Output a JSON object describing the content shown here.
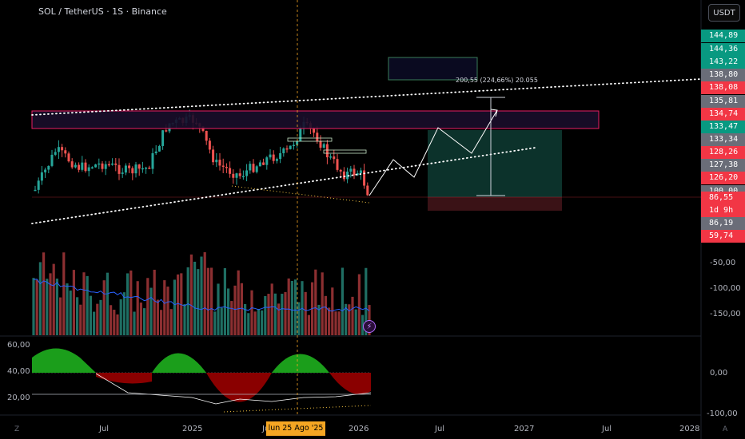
{
  "header": {
    "symbol_title": "SOL / TetherUS · 1S · Binance",
    "currency_button": "USDT"
  },
  "price_badges": [
    {
      "text": "144,89",
      "color": "#089981"
    },
    {
      "text": "144,36",
      "color": "#089981"
    },
    {
      "text": "143,22",
      "color": "#089981"
    },
    {
      "text": "138,80",
      "color": "#6a6d78"
    },
    {
      "text": "138,08",
      "color": "#f23645"
    },
    {
      "text": "135,81",
      "color": "#6a6d78"
    },
    {
      "text": "134,74",
      "color": "#f23645"
    },
    {
      "text": "133,47",
      "color": "#089981"
    },
    {
      "text": "133,34",
      "color": "#6a6d78"
    },
    {
      "text": "128,26",
      "color": "#f23645"
    },
    {
      "text": "127,38",
      "color": "#6a6d78"
    },
    {
      "text": "126,20",
      "color": "#f23645"
    },
    {
      "text": "100,00",
      "color": "#6a6d78"
    },
    {
      "text": "86,55",
      "color": "#f23645"
    },
    {
      "text": "1d 9h",
      "color": "#f23645"
    },
    {
      "text": "86,19",
      "color": "#6a6d78"
    },
    {
      "text": "59,74",
      "color": "#f23645"
    }
  ],
  "volume_axis": [
    "-50,00",
    "-100,00",
    "-150,00"
  ],
  "oscillator": {
    "left_axis": [
      "60,00",
      "40,00",
      "20,00"
    ],
    "right_axis": [
      "0,00",
      "-100,00"
    ]
  },
  "time_axis": [
    "Jul",
    "2025",
    "Jul",
    "2026",
    "Jul",
    "2027",
    "Jul",
    "2028"
  ],
  "crosshair_date": "lun 25 Ago '25",
  "projection_label": "200,55 (224,66%) 20.055",
  "corner_marks": {
    "left": "Z",
    "right": "A"
  },
  "colors": {
    "up": "#26a69a",
    "down": "#ef5350",
    "background": "#000000",
    "crosshair": "#f5a623",
    "resistance_box": "#e91e63",
    "target_box": "#0e3b33",
    "stop_box": "#3a1216"
  },
  "chart_data": {
    "type": "candlestick",
    "series": [
      {
        "name": "SOL / TetherUS",
        "timeframe": "1S"
      }
    ],
    "x_ticks": [
      "Jul",
      "2025",
      "Jul",
      "2026",
      "Jul",
      "2027",
      "Jul",
      "2028"
    ],
    "price_close_last": 86.55
  }
}
